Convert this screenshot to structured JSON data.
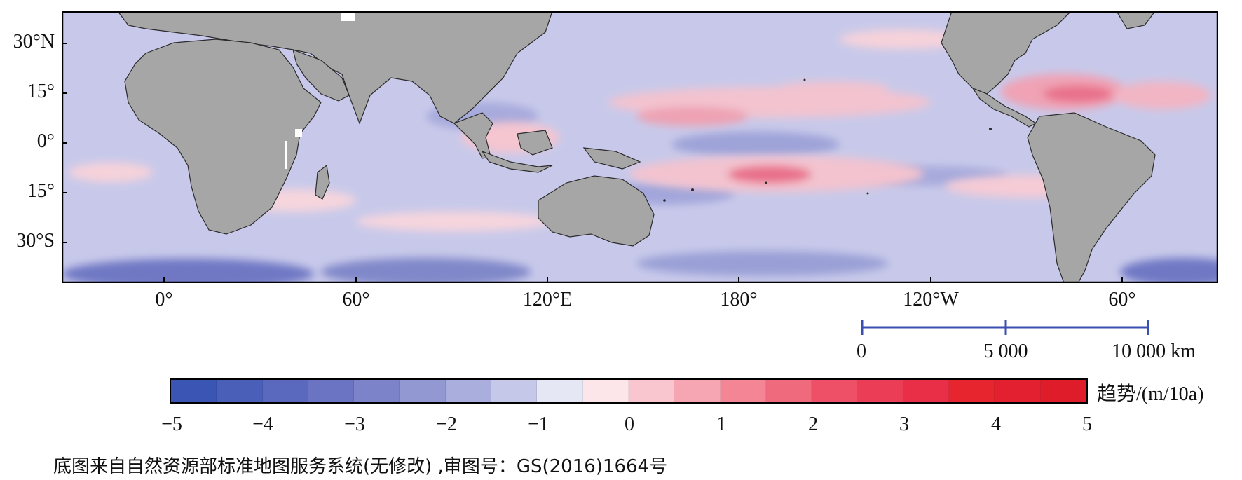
{
  "map": {
    "lat_labels": [
      "30°N",
      "15°",
      "0°",
      "15°",
      "30°S"
    ],
    "lon_labels": [
      "0°",
      "60°",
      "120°E",
      "180°",
      "120°W",
      "60°"
    ]
  },
  "scale_bar": {
    "labels": [
      "0",
      "5 000",
      "10 000 km"
    ],
    "color": "#3a4fb0"
  },
  "colorbar": {
    "tick_labels": [
      "−5",
      "−4",
      "−3",
      "−2",
      "−1",
      "0",
      "1",
      "2",
      "3",
      "4",
      "5"
    ],
    "unit_label": "趋势/(m/10a)",
    "colors": [
      "#3a55b3",
      "#4a5fb8",
      "#5a68bd",
      "#6b74c2",
      "#7c83c9",
      "#9298d2",
      "#aaaedc",
      "#c5c8e8",
      "#e6e7f4",
      "#fde6ea",
      "#f9c6cf",
      "#f6a6b3",
      "#f38595",
      "#f06a7e",
      "#ee5068",
      "#ec3d57",
      "#e92e47",
      "#e6252f",
      "#e22030",
      "#de1c2a"
    ]
  },
  "source_note": "底图来自自然资源部标准地图服务系统(无修改) ,审图号：GS(2016)1664号",
  "style": {
    "ocean_base": "#c8c9ea",
    "land": "#a6a6a6",
    "positive_trend": "#f4a6b6",
    "strong_positive": "#e8657d",
    "negative_trend": "#a5a8dc",
    "strong_negative": "#6a74c2"
  }
}
